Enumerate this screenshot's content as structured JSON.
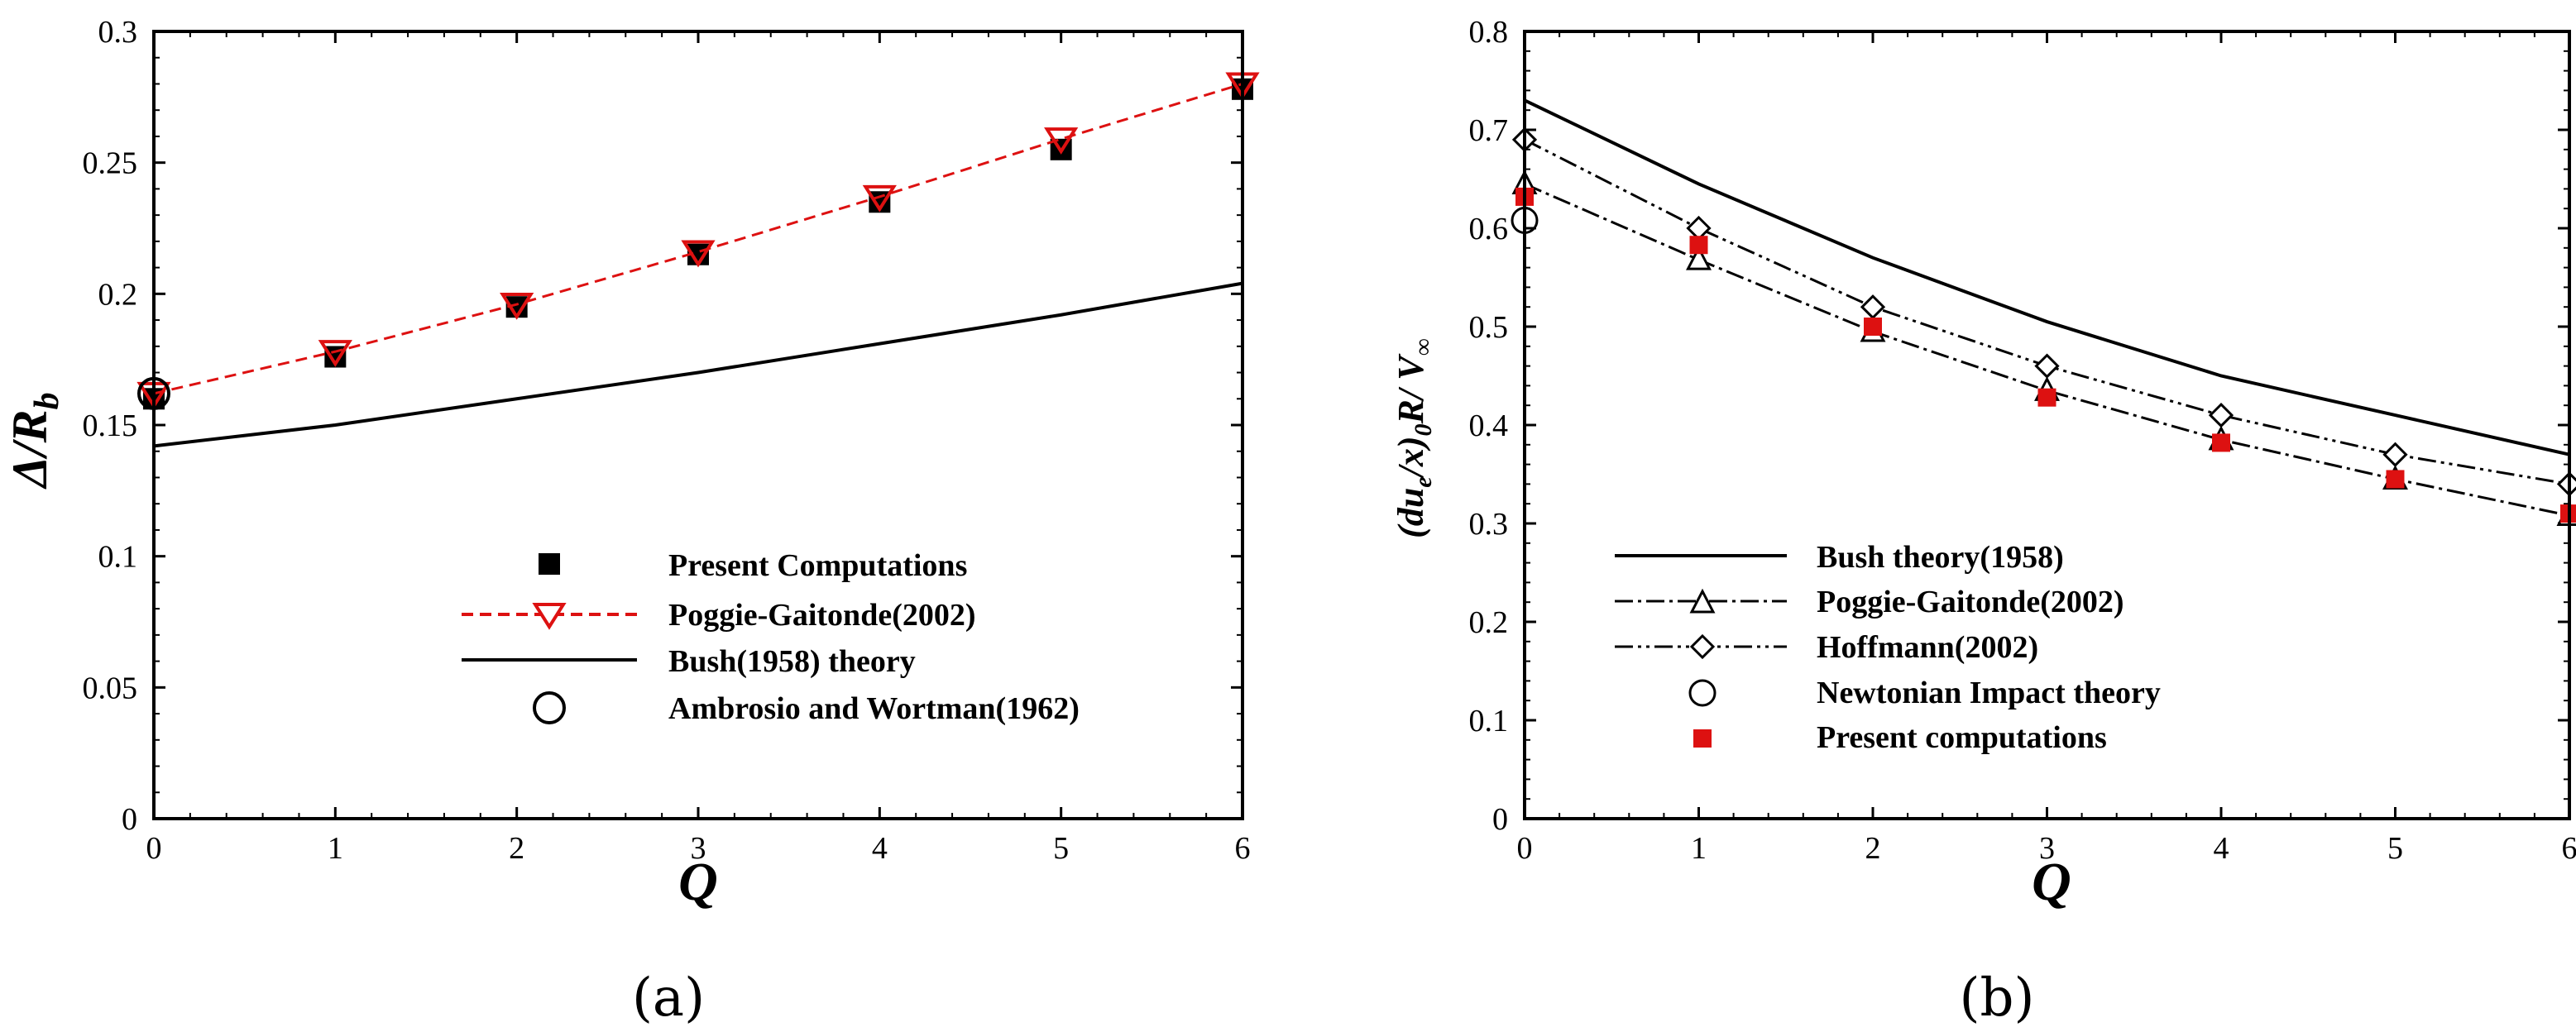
{
  "chart_data": [
    {
      "type": "line",
      "panel_label": "(a)",
      "xlabel": "Q",
      "ylabel": "Δ/R",
      "ylabel_sub": "b",
      "xlim": [
        0,
        6
      ],
      "ylim": [
        0,
        0.3
      ],
      "xticks": [
        0,
        1,
        2,
        3,
        4,
        5,
        6
      ],
      "xtick_labels": [
        "0",
        "1",
        "2",
        "3",
        "4",
        "5",
        "6"
      ],
      "yticks": [
        0,
        0.05,
        0.1,
        0.15,
        0.2,
        0.25,
        0.3
      ],
      "ytick_labels": [
        "0",
        "0.05",
        "0.1",
        "0.15",
        "0.2",
        "0.25",
        "0.3"
      ],
      "legend": {
        "placement": "bottom-center"
      },
      "series": [
        {
          "name": "Present Computations",
          "style": "filled-square",
          "color": "#000000",
          "x": [
            0,
            1,
            2,
            3,
            4,
            5,
            6
          ],
          "y": [
            0.16,
            0.176,
            0.195,
            0.215,
            0.235,
            0.255,
            0.278
          ]
        },
        {
          "name": "Poggie-Gaitonde(2002)",
          "style": "dashed-line-open-triangle-down",
          "color": "#dd1111",
          "x": [
            0,
            1,
            2,
            3,
            4,
            5,
            6
          ],
          "y": [
            0.162,
            0.178,
            0.196,
            0.216,
            0.237,
            0.259,
            0.28
          ]
        },
        {
          "name": "Bush(1958) theory",
          "style": "solid-line",
          "color": "#000000",
          "x": [
            0,
            1,
            2,
            3,
            4,
            5,
            6
          ],
          "y": [
            0.142,
            0.15,
            0.16,
            0.17,
            0.181,
            0.192,
            0.204
          ]
        },
        {
          "name": "Ambrosio and Wortman(1962)",
          "style": "open-circle",
          "color": "#000000",
          "x": [
            0
          ],
          "y": [
            0.162
          ]
        }
      ]
    },
    {
      "type": "line",
      "panel_label": "(b)",
      "xlabel": "Q",
      "ylabel": "(du",
      "ylabel_sub": "e",
      "ylabel_mid": "/x)",
      "ylabel_sub2": "0",
      "ylabel_end": "R/ V",
      "ylabel_sub3": "∞",
      "xlim": [
        0,
        6
      ],
      "ylim": [
        0,
        0.8
      ],
      "xticks": [
        0,
        1,
        2,
        3,
        4,
        5,
        6
      ],
      "xtick_labels": [
        "0",
        "1",
        "2",
        "3",
        "4",
        "5",
        "6"
      ],
      "yticks": [
        0,
        0.1,
        0.2,
        0.3,
        0.4,
        0.5,
        0.6,
        0.7,
        0.8
      ],
      "ytick_labels": [
        "0",
        "0.1",
        "0.2",
        "0.3",
        "0.4",
        "0.5",
        "0.6",
        "0.7",
        "0.8"
      ],
      "legend": {
        "placement": "bottom-left"
      },
      "series": [
        {
          "name": "Bush theory(1958)",
          "style": "solid-line",
          "color": "#000000",
          "x": [
            0,
            1,
            2,
            3,
            4,
            5,
            6
          ],
          "y": [
            0.73,
            0.645,
            0.57,
            0.505,
            0.45,
            0.41,
            0.37
          ]
        },
        {
          "name": "Poggie-Gaitonde(2002)",
          "style": "dashdot-line-open-triangle",
          "color": "#000000",
          "x": [
            0,
            1,
            2,
            3,
            4,
            5,
            6
          ],
          "y": [
            0.645,
            0.568,
            0.495,
            0.435,
            0.385,
            0.345,
            0.308
          ]
        },
        {
          "name": "Hoffmann(2002)",
          "style": "dashdotdot-line-open-diamond",
          "color": "#000000",
          "x": [
            0,
            1,
            2,
            3,
            4,
            5,
            6
          ],
          "y": [
            0.69,
            0.6,
            0.52,
            0.46,
            0.41,
            0.37,
            0.34
          ]
        },
        {
          "name": "Newtonian Impact theory",
          "style": "open-circle",
          "color": "#000000",
          "x": [
            0
          ],
          "y": [
            0.608
          ]
        },
        {
          "name": "Present computations",
          "style": "filled-square",
          "color": "#dd1111",
          "x": [
            0,
            1,
            2,
            3,
            4,
            5,
            6
          ],
          "y": [
            0.632,
            0.583,
            0.5,
            0.428,
            0.382,
            0.345,
            0.31
          ]
        }
      ]
    }
  ]
}
